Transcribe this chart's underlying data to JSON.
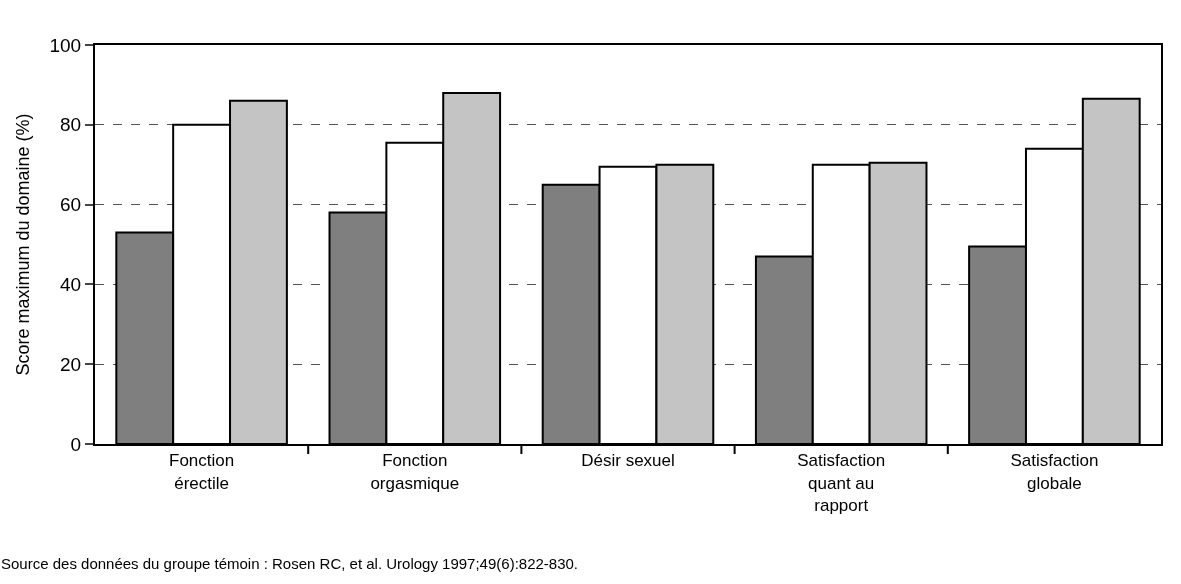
{
  "chart_data": {
    "type": "bar",
    "ylabel": "Score maximum du domaine (%)",
    "categories": [
      "Fonction\nérectile",
      "Fonction\norgasmique",
      "Désir sexuel",
      "Satisfaction\nquant au\nrapport",
      "Satisfaction\nglobale"
    ],
    "series": [
      {
        "color": "#7f7f7f",
        "values": [
          53,
          58,
          65,
          47,
          49.5
        ]
      },
      {
        "color": "#ffffff",
        "values": [
          80,
          75.5,
          69.5,
          70,
          74
        ]
      },
      {
        "color": "#c4c4c4",
        "values": [
          86,
          88,
          70,
          70.5,
          86.5
        ]
      }
    ],
    "ylim": [
      0,
      100
    ],
    "yticks": [
      0,
      20,
      40,
      60,
      80,
      100
    ],
    "grid": "y",
    "line_style": "dashed",
    "annotations": [
      "Source des données du groupe témoin : Rosen RC, et al. Urology 1997;49(6):822-830."
    ]
  }
}
